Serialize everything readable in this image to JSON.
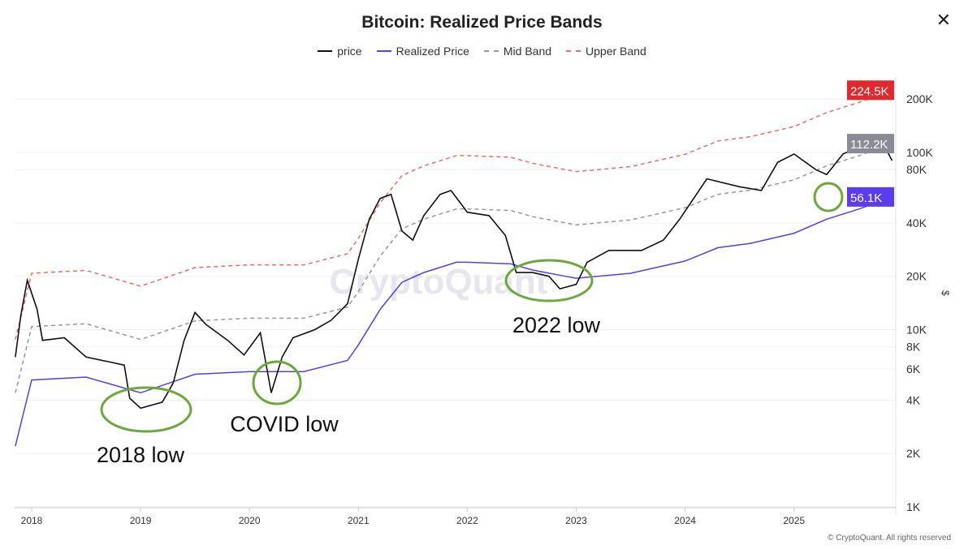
{
  "title": "Bitcoin: Realized Price Bands",
  "close_icon": "close-icon",
  "footer": "© CryptoQuant. All rights reserved",
  "watermark": "CryptoQuant",
  "chart_data": {
    "type": "line",
    "title": "Bitcoin: Realized Price Bands",
    "ylabel": "$",
    "yscale": "log",
    "ylim": [
      1000,
      260000
    ],
    "xlim": [
      2017.84,
      2025.92
    ],
    "grid": "horizontal",
    "legend": "top",
    "x_ticks": [
      "2018",
      "2019",
      "2020",
      "2021",
      "2022",
      "2023",
      "2024",
      "2025"
    ],
    "y_ticks": [
      {
        "v": 1000,
        "label": "1K"
      },
      {
        "v": 2000,
        "label": "2K"
      },
      {
        "v": 4000,
        "label": "4K"
      },
      {
        "v": 6000,
        "label": "6K"
      },
      {
        "v": 8000,
        "label": "8K"
      },
      {
        "v": 10000,
        "label": "10K"
      },
      {
        "v": 20000,
        "label": "20K"
      },
      {
        "v": 40000,
        "label": "40K"
      },
      {
        "v": 80000,
        "label": "80K"
      },
      {
        "v": 100000,
        "label": "100K"
      },
      {
        "v": 200000,
        "label": "200K"
      }
    ],
    "series": [
      {
        "name": "price",
        "color": "#111111",
        "dash": false,
        "x": [
          2017.85,
          2017.9,
          2017.96,
          2018.05,
          2018.1,
          2018.3,
          2018.5,
          2018.7,
          2018.85,
          2018.9,
          2019.0,
          2019.2,
          2019.3,
          2019.4,
          2019.5,
          2019.6,
          2019.8,
          2019.95,
          2020.1,
          2020.2,
          2020.3,
          2020.4,
          2020.6,
          2020.75,
          2020.9,
          2021.0,
          2021.1,
          2021.2,
          2021.3,
          2021.4,
          2021.5,
          2021.6,
          2021.75,
          2021.85,
          2022.0,
          2022.2,
          2022.35,
          2022.45,
          2022.6,
          2022.75,
          2022.85,
          2023.0,
          2023.1,
          2023.3,
          2023.6,
          2023.8,
          2023.95,
          2024.2,
          2024.5,
          2024.7,
          2024.85,
          2025.0,
          2025.2,
          2025.3,
          2025.45,
          2025.6,
          2025.75,
          2025.85,
          2025.9
        ],
        "y": [
          7000,
          12000,
          19000,
          13000,
          8700,
          9000,
          7000,
          6600,
          6300,
          4100,
          3600,
          3900,
          5000,
          8700,
          12500,
          10700,
          8700,
          7200,
          9600,
          4400,
          7000,
          9000,
          10000,
          11300,
          14000,
          25000,
          42000,
          55000,
          58000,
          36000,
          32000,
          44000,
          58000,
          61000,
          46000,
          44000,
          34000,
          21000,
          21000,
          20000,
          17000,
          18000,
          24000,
          28000,
          28000,
          32000,
          42000,
          71000,
          64000,
          61000,
          88000,
          98000,
          80000,
          75000,
          98000,
          108000,
          114000,
          103000,
          90000
        ]
      },
      {
        "name": "Realized Price",
        "color": "#5b3cf0",
        "dash": false,
        "end_label": "56.1K",
        "x": [
          2017.85,
          2018.0,
          2018.5,
          2019.0,
          2019.5,
          2020.0,
          2020.5,
          2020.9,
          2021.0,
          2021.2,
          2021.4,
          2021.6,
          2021.9,
          2022.0,
          2022.4,
          2022.6,
          2022.9,
          2023.0,
          2023.5,
          2024.0,
          2024.3,
          2024.6,
          2025.0,
          2025.3,
          2025.6,
          2025.9
        ],
        "y": [
          2200,
          5200,
          5400,
          4400,
          5600,
          5800,
          5800,
          6700,
          8200,
          13000,
          18500,
          21000,
          24000,
          24000,
          23500,
          21700,
          20000,
          19500,
          20800,
          24400,
          29000,
          30700,
          35000,
          42000,
          48000,
          56100
        ]
      },
      {
        "name": "Mid Band",
        "color": "#999999",
        "dash": true,
        "end_label": "112.2K",
        "x": [
          2017.85,
          2018.0,
          2018.5,
          2019.0,
          2019.5,
          2020.0,
          2020.5,
          2020.9,
          2021.0,
          2021.2,
          2021.4,
          2021.6,
          2021.9,
          2022.0,
          2022.4,
          2022.6,
          2022.9,
          2023.0,
          2023.5,
          2024.0,
          2024.3,
          2024.6,
          2025.0,
          2025.3,
          2025.6,
          2025.9
        ],
        "y": [
          4400,
          10400,
          10800,
          8800,
          11200,
          11600,
          11600,
          13400,
          16400,
          26000,
          37000,
          42000,
          48000,
          48000,
          47000,
          43400,
          40000,
          39000,
          41600,
          48800,
          58000,
          61400,
          70000,
          84000,
          96000,
          112200
        ]
      },
      {
        "name": "Upper Band",
        "color": "#f06a6a",
        "dash": true,
        "end_label": "224.5K",
        "x": [
          2017.85,
          2018.0,
          2018.5,
          2019.0,
          2019.5,
          2020.0,
          2020.5,
          2020.9,
          2021.0,
          2021.2,
          2021.4,
          2021.6,
          2021.9,
          2022.0,
          2022.4,
          2022.6,
          2022.9,
          2023.0,
          2023.5,
          2024.0,
          2024.3,
          2024.6,
          2025.0,
          2025.3,
          2025.6,
          2025.9
        ],
        "y": [
          8800,
          20800,
          21600,
          17600,
          22400,
          23200,
          23200,
          26800,
          32800,
          52000,
          74000,
          84000,
          96000,
          96000,
          94000,
          86800,
          80000,
          78000,
          83200,
          97600,
          116000,
          122800,
          140000,
          168000,
          192000,
          224500
        ]
      }
    ],
    "annotations": [
      {
        "text": "2018 low",
        "x": 2019.05,
        "y": 3800
      },
      {
        "text": "COVID low",
        "x": 2020.25,
        "y": 5500
      },
      {
        "text": "2022 low",
        "x": 2022.75,
        "y": 21000
      },
      {
        "text": "",
        "x": 2025.87,
        "y": 56100
      }
    ]
  }
}
